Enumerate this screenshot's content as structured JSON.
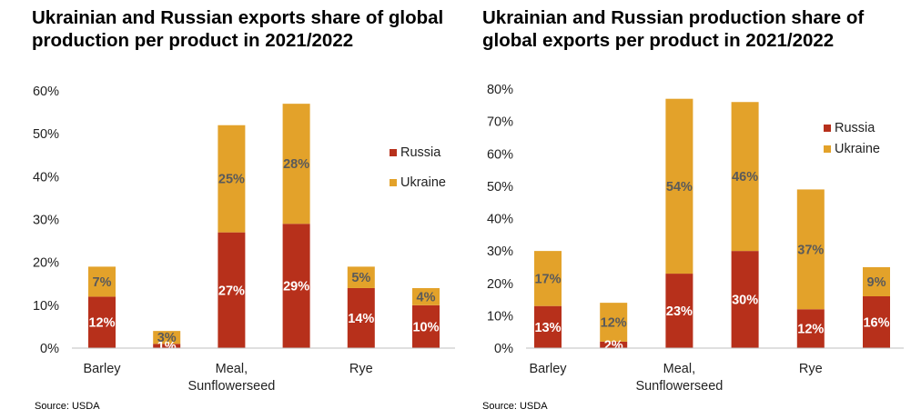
{
  "colors": {
    "russia": "#b7301b",
    "ukraine": "#e3a22a",
    "label_dark": "#5a5a5a",
    "label_light": "#ffffff",
    "axis": "#bfbfbf"
  },
  "chart_data": [
    {
      "type": "bar",
      "stacked": true,
      "title": "Ukrainian and Russian exports share of global production per product in 2021/2022",
      "source": "Source: USDA",
      "categories": [
        "Barley",
        "",
        "Meal, Sunflowerseed",
        "",
        "Rye",
        ""
      ],
      "category_labels": [
        [
          "Barley"
        ],
        [],
        [
          "Meal,",
          "Sunflowerseed"
        ],
        [],
        [
          "Rye"
        ],
        []
      ],
      "series": [
        {
          "name": "Russia",
          "values": [
            12,
            1,
            27,
            29,
            14,
            10
          ],
          "labels": [
            "12%",
            "1%",
            "27%",
            "29%",
            "14%",
            "10%"
          ]
        },
        {
          "name": "Ukraine",
          "values": [
            7,
            3,
            25,
            28,
            5,
            4
          ],
          "labels": [
            "7%",
            "3%",
            "25%",
            "28%",
            "5%",
            "4%"
          ]
        }
      ],
      "ylim": [
        0,
        60
      ],
      "yticks": [
        0,
        10,
        20,
        30,
        40,
        50,
        60
      ],
      "ytick_labels": [
        "0%",
        "10%",
        "20%",
        "30%",
        "40%",
        "50%",
        "60%"
      ],
      "legend": [
        "Russia",
        "Ukraine"
      ],
      "legend_position": "right",
      "grid": false
    },
    {
      "type": "bar",
      "stacked": true,
      "title": "Ukrainian and Russian production share of global exports per product in 2021/2022",
      "source": "Source: USDA",
      "categories": [
        "Barley",
        "",
        "Meal, Sunflowerseed",
        "",
        "Rye",
        ""
      ],
      "category_labels": [
        [
          "Barley"
        ],
        [],
        [
          "Meal,",
          "Sunflowerseed"
        ],
        [],
        [
          "Rye"
        ],
        []
      ],
      "series": [
        {
          "name": "Russia",
          "values": [
            13,
            2,
            23,
            30,
            12,
            16
          ],
          "labels": [
            "13%",
            "2%",
            "23%",
            "30%",
            "12%",
            "16%"
          ]
        },
        {
          "name": "Ukraine",
          "values": [
            17,
            12,
            54,
            46,
            37,
            9
          ],
          "labels": [
            "17%",
            "12%",
            "54%",
            "46%",
            "37%",
            "9%"
          ]
        }
      ],
      "ylim": [
        0,
        80
      ],
      "yticks": [
        0,
        10,
        20,
        30,
        40,
        50,
        60,
        70,
        80
      ],
      "ytick_labels": [
        "0%",
        "10%",
        "20%",
        "30%",
        "40%",
        "50%",
        "60%",
        "70%",
        "80%"
      ],
      "legend": [
        "Russia",
        "Ukraine"
      ],
      "legend_position": "top-right",
      "grid": false
    }
  ]
}
